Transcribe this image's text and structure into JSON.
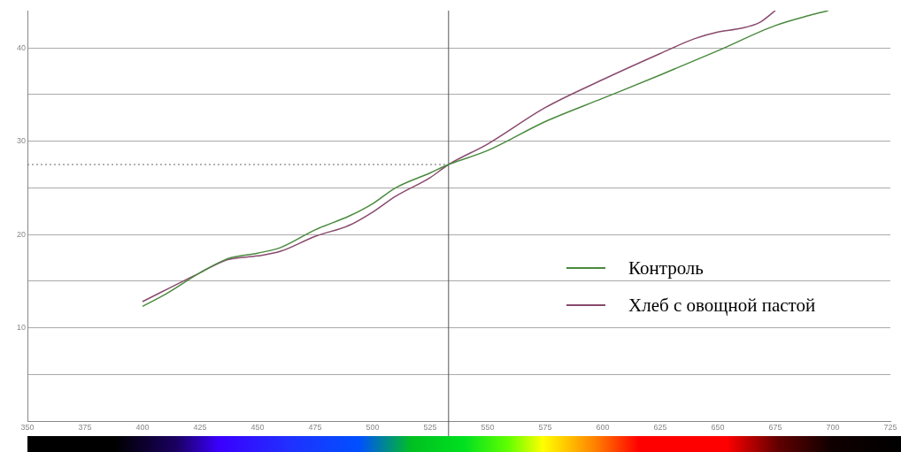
{
  "chart_data": {
    "type": "line",
    "xlim": [
      350,
      725
    ],
    "xticks": [
      350,
      375,
      400,
      425,
      450,
      475,
      500,
      525,
      550,
      575,
      600,
      625,
      650,
      675,
      700,
      725
    ],
    "ylim": [
      0,
      44
    ],
    "yticks": [
      {
        "value": 5,
        "label": null
      },
      10,
      {
        "value": 15,
        "label": null
      },
      20,
      {
        "value": 25,
        "label": null
      },
      30,
      {
        "value": 35,
        "label": null
      },
      40
    ],
    "grid": "y",
    "legend": "right",
    "line_style": "solid",
    "marker": "none",
    "series": [
      {
        "name": "Контроль",
        "color": "#4a8a3e",
        "x": [
          400,
          410,
          425,
          437,
          450,
          460,
          475,
          490,
          500,
          510,
          525,
          533,
          550,
          575,
          600,
          625,
          650,
          675,
          690,
          698
        ],
        "values": [
          12.3,
          13.6,
          15.9,
          17.4,
          18.0,
          18.6,
          20.5,
          22.0,
          23.3,
          25.0,
          26.6,
          27.5,
          29.0,
          32.1,
          34.6,
          37.1,
          39.7,
          42.4,
          43.5,
          44.0
        ]
      },
      {
        "name": "Хлеб с овощной пастой",
        "color": "#8a4a6e",
        "x": [
          400,
          425,
          437,
          450,
          460,
          475,
          490,
          500,
          510,
          525,
          533,
          550,
          575,
          600,
          625,
          640,
          650,
          660,
          668,
          675
        ],
        "values": [
          12.8,
          15.9,
          17.3,
          17.7,
          18.2,
          19.8,
          21.0,
          22.4,
          24.1,
          26.1,
          27.5,
          29.7,
          33.6,
          36.6,
          39.4,
          41.0,
          41.7,
          42.1,
          42.7,
          44.0
        ]
      }
    ],
    "ref_lines": [
      {
        "axis": "x",
        "value": 533,
        "color": "#555555",
        "line_style": "solid"
      },
      {
        "axis": "y",
        "value": 27.5,
        "color": "#666666",
        "line_style": "dotted"
      }
    ]
  }
}
